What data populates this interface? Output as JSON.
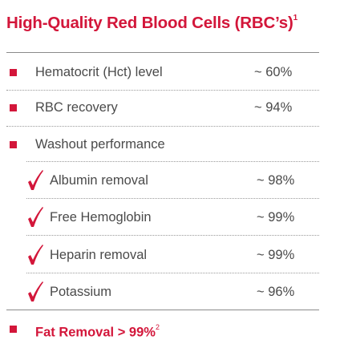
{
  "title": {
    "text": "High-Quality Red Blood Cells (RBC’s)",
    "ref": "1"
  },
  "main_items": [
    {
      "label": "Hematocrit (Hct) level",
      "value": "~ 60%"
    },
    {
      "label": "RBC recovery",
      "value": "~ 94%"
    },
    {
      "label": "Washout performance",
      "value": ""
    }
  ],
  "washout_items": [
    {
      "label": "Albumin removal",
      "value": "~ 98%"
    },
    {
      "label": "Free Hemoglobin",
      "value": "~ 99%"
    },
    {
      "label": "Heparin removal",
      "value": "~ 99%"
    },
    {
      "label": "Potassium",
      "value": "~ 96%"
    }
  ],
  "fat_removal": {
    "text": "Fat Removal > 99%",
    "ref": "2"
  },
  "colors": {
    "accent": "#d3163a",
    "text": "#4a4a4a",
    "rule": "#8a8a8a"
  }
}
